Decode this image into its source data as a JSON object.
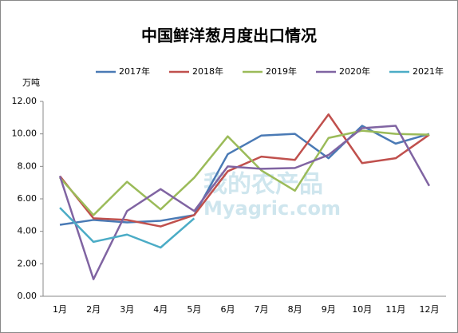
{
  "chart_data": {
    "type": "line",
    "title": "中国鲜洋葱月度出口情况",
    "y_label": "万吨",
    "watermark": [
      "我的农产品",
      "Myagric.com"
    ],
    "categories": [
      "1月",
      "2月",
      "3月",
      "4月",
      "5月",
      "6月",
      "7月",
      "8月",
      "9月",
      "10月",
      "11月",
      "12月"
    ],
    "series": [
      {
        "name": "2017年",
        "color": "#4a7ab5",
        "values": [
          4.4,
          4.7,
          4.55,
          4.65,
          5.0,
          8.75,
          9.9,
          10.0,
          8.5,
          10.5,
          9.4,
          10.0
        ]
      },
      {
        "name": "2018年",
        "color": "#c0504d",
        "values": [
          7.4,
          4.8,
          4.7,
          4.3,
          5.0,
          7.7,
          8.6,
          8.4,
          11.2,
          8.2,
          8.5,
          9.95
        ]
      },
      {
        "name": "2019年",
        "color": "#9bbb59",
        "values": [
          7.3,
          5.0,
          7.05,
          5.35,
          7.3,
          9.85,
          7.75,
          6.5,
          9.75,
          10.2,
          10.0,
          9.95
        ]
      },
      {
        "name": "2020年",
        "color": "#8064a2",
        "values": [
          7.4,
          1.05,
          5.25,
          6.6,
          5.25,
          8.0,
          7.85,
          7.9,
          8.7,
          10.35,
          10.5,
          6.8
        ]
      },
      {
        "name": "2021年",
        "color": "#4bacc6",
        "values": [
          5.45,
          3.35,
          3.8,
          3.0,
          4.8,
          null,
          null,
          null,
          null,
          null,
          null,
          null
        ]
      }
    ],
    "ylim": [
      0,
      12
    ],
    "yticks": [
      {
        "value": 0,
        "label": "0.00"
      },
      {
        "value": 2,
        "label": "2.00"
      },
      {
        "value": 4,
        "label": "4.00"
      },
      {
        "value": 6,
        "label": "6.00"
      },
      {
        "value": 8,
        "label": "8.00"
      },
      {
        "value": 10,
        "label": "10.00"
      },
      {
        "value": 12,
        "label": "12.00"
      }
    ],
    "legend": "top"
  }
}
